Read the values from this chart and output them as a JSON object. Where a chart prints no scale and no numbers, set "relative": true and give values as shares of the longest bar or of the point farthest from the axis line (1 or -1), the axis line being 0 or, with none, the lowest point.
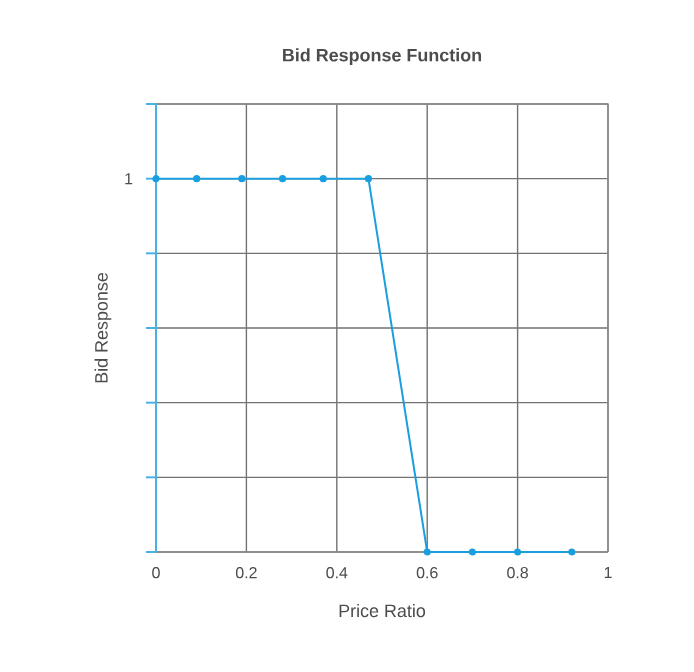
{
  "chart_data": {
    "type": "line",
    "title": "Bid Response Function",
    "xlabel": "Price Ratio",
    "ylabel": "Bid Response",
    "x": [
      0,
      0.09,
      0.19,
      0.28,
      0.37,
      0.47,
      0.6,
      0.7,
      0.8,
      0.92
    ],
    "series": [
      {
        "color": "#1a9ee0",
        "values": [
          1,
          1,
          1,
          1,
          1,
          1,
          0,
          0,
          0,
          0
        ]
      }
    ],
    "xlim": [
      0,
      1
    ],
    "xticks": [
      0,
      0.2,
      0.4,
      0.6,
      0.8,
      1
    ],
    "relative": true,
    "annotations": [
      "1"
    ],
    "grid": true,
    "marker": "circle",
    "line_style": "solid"
  }
}
